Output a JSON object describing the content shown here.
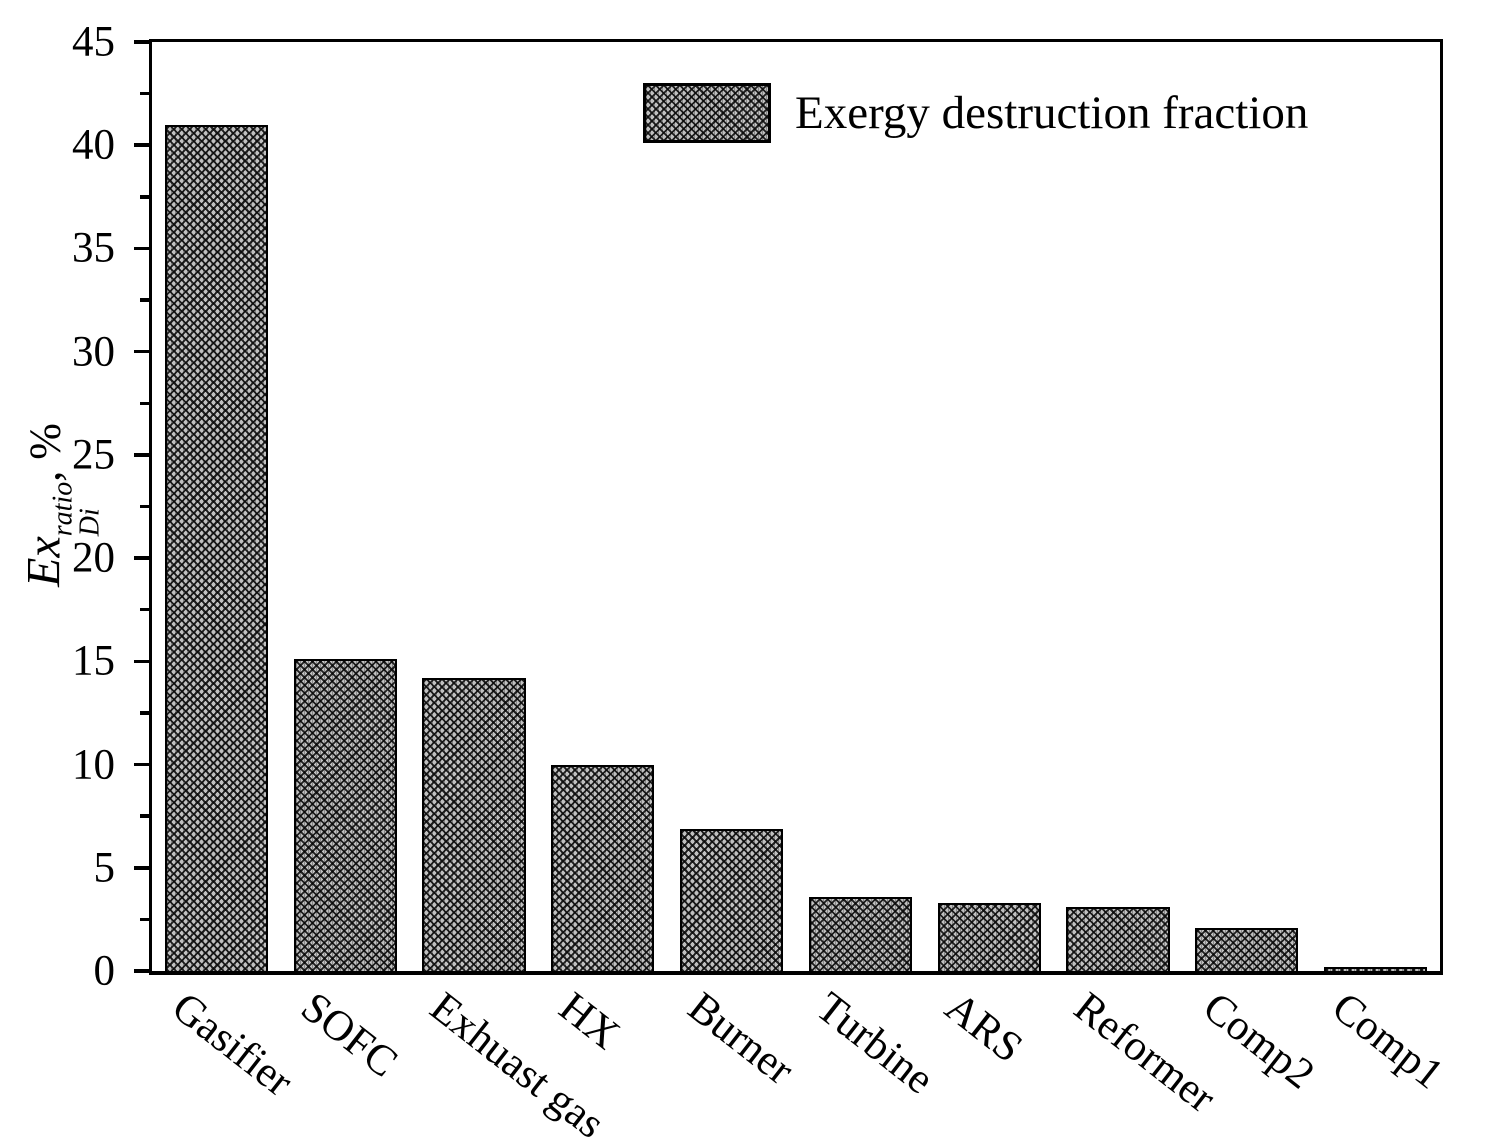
{
  "figure": {
    "background_color": "#ffffff",
    "text_color": "#000000"
  },
  "legend": {
    "label": "Exergy destruction fraction",
    "swatch_style": "dense-crosshatch"
  },
  "axes": {
    "ylabel_base": "Ex",
    "ylabel_sup": "ratio",
    "ylabel_sub": "Di",
    "ylabel_suffix": ", %"
  },
  "chart_data": {
    "type": "bar",
    "title": "",
    "xlabel": "",
    "ylabel": "Ex_Di^ratio , %",
    "legend_entries": [
      "Exergy destruction fraction"
    ],
    "legend_position": "upper center-right, no frame",
    "categories": [
      "Gasifier",
      "SOFC",
      "Exhuast gas",
      "HX",
      "Burner",
      "Turbine",
      "ARS",
      "Reformer",
      "Comp2",
      "Comp1"
    ],
    "values": [
      41.0,
      15.1,
      14.2,
      10.0,
      6.9,
      3.6,
      3.3,
      3.1,
      2.1,
      0.2
    ],
    "ylim": [
      0,
      45
    ],
    "ytick_major_step": 5,
    "ytick_minor_step": 2.5,
    "ytick_labels": [
      "0",
      "5",
      "10",
      "15",
      "20",
      "25",
      "30",
      "35",
      "40",
      "45"
    ],
    "grid": false,
    "bar_fill": "black dense crosshatch hatching on gray",
    "bar_edge_color": "#000000",
    "bar_width_fraction": 0.8,
    "xtick_label_rotation_deg": 38
  }
}
